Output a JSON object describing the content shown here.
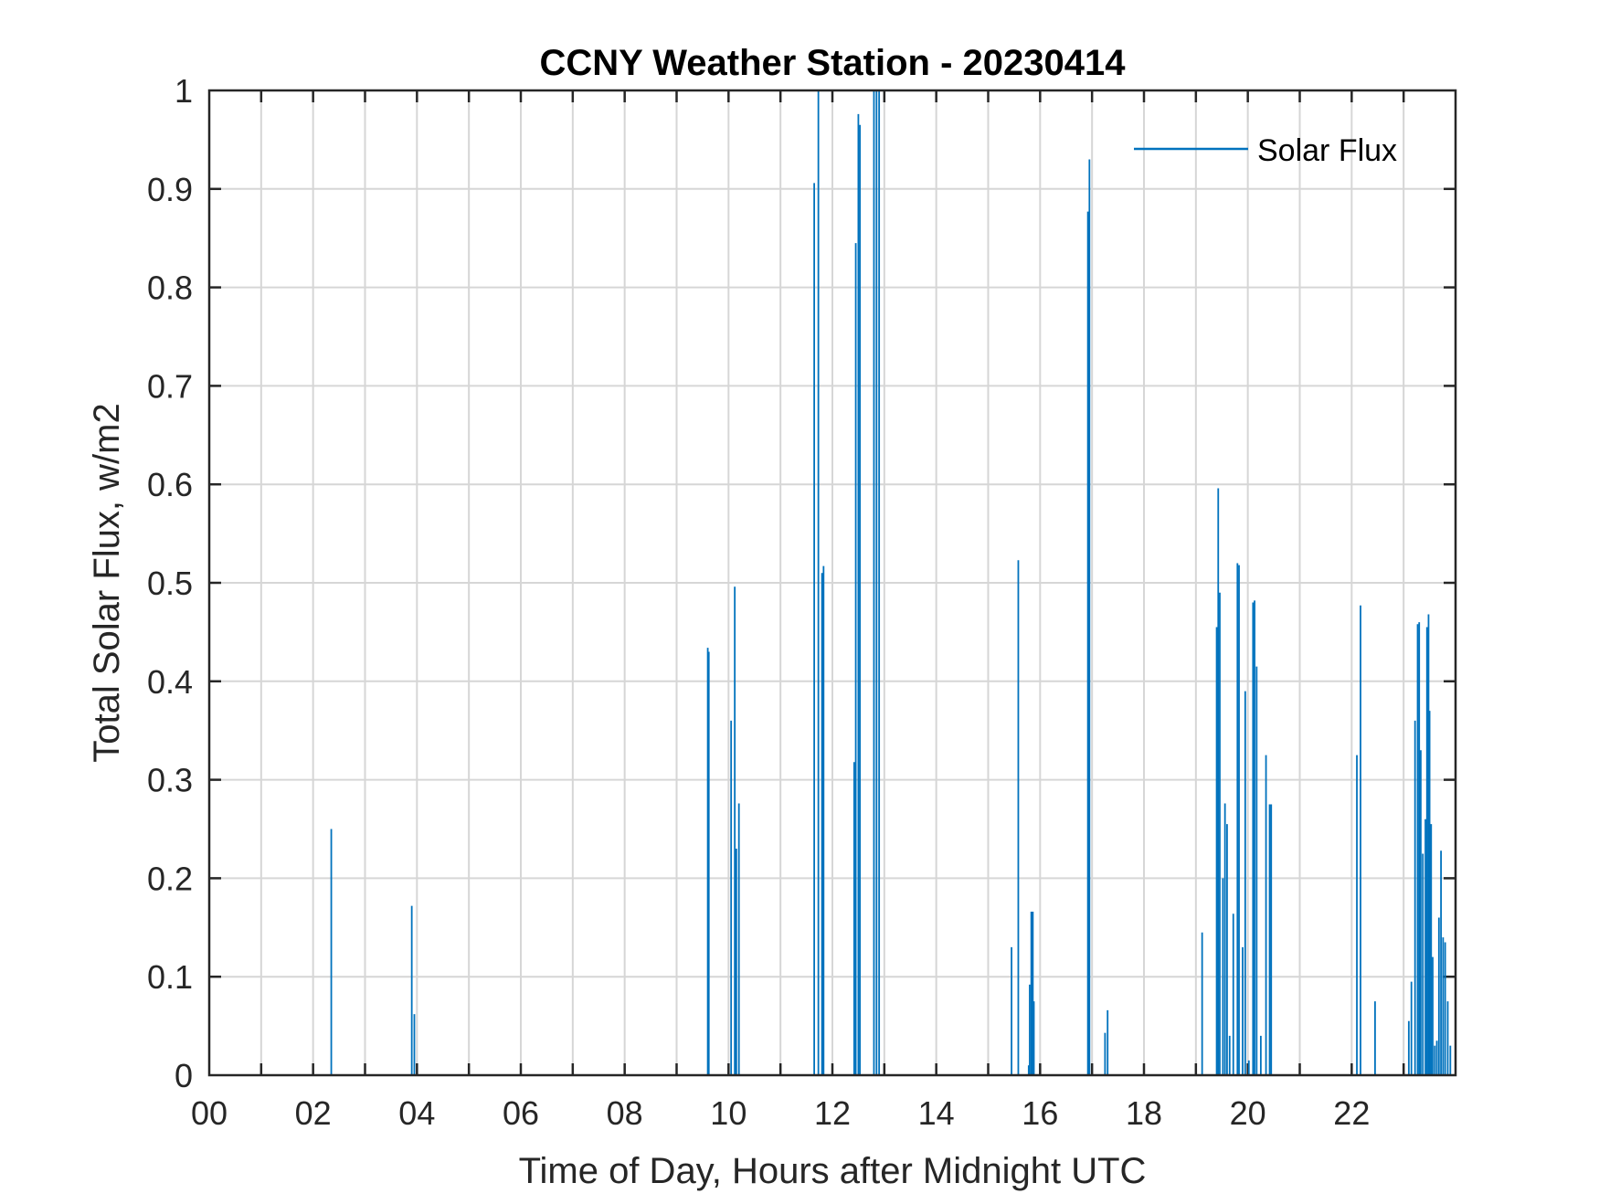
{
  "chart_data": {
    "type": "line",
    "title": "CCNY Weather Station - 20230414",
    "xlabel": "Time of Day, Hours after Midnight UTC",
    "ylabel": "Total Solar Flux, w/m2",
    "xlim": [
      0,
      24
    ],
    "ylim": [
      0,
      1
    ],
    "grid": true,
    "legend_position": "top-right",
    "x_ticks": [
      0,
      2,
      4,
      6,
      8,
      10,
      12,
      14,
      16,
      18,
      20,
      22
    ],
    "x_tick_labels": [
      "00",
      "02",
      "04",
      "06",
      "08",
      "10",
      "12",
      "14",
      "16",
      "18",
      "20",
      "22"
    ],
    "y_ticks": [
      0,
      0.1,
      0.2,
      0.3,
      0.4,
      0.5,
      0.6,
      0.7,
      0.8,
      0.9,
      1
    ],
    "y_tick_labels": [
      "0",
      "0.1",
      "0.2",
      "0.3",
      "0.4",
      "0.5",
      "0.6",
      "0.7",
      "0.8",
      "0.9",
      "1"
    ],
    "series": [
      {
        "name": "Solar Flux",
        "color": "#0072BD",
        "spikes": [
          [
            2.35,
            0.25
          ],
          [
            3.9,
            0.172
          ],
          [
            3.95,
            0.062
          ],
          [
            9.6,
            0.434
          ],
          [
            9.62,
            0.43
          ],
          [
            10.05,
            0.36
          ],
          [
            10.12,
            0.496
          ],
          [
            10.15,
            0.23
          ],
          [
            10.2,
            0.276
          ],
          [
            11.65,
            0.906
          ],
          [
            11.73,
            1.0
          ],
          [
            11.8,
            0.51
          ],
          [
            11.83,
            0.517
          ],
          [
            12.42,
            0.318
          ],
          [
            12.45,
            0.845
          ],
          [
            12.5,
            0.976
          ],
          [
            12.53,
            0.965
          ],
          [
            12.8,
            1.0
          ],
          [
            12.85,
            1.0
          ],
          [
            12.9,
            1.0
          ],
          [
            15.45,
            0.13
          ],
          [
            15.58,
            0.523
          ],
          [
            15.78,
            0.01
          ],
          [
            15.8,
            0.092
          ],
          [
            15.83,
            0.166
          ],
          [
            15.86,
            0.166
          ],
          [
            15.88,
            0.075
          ],
          [
            16.92,
            0.877
          ],
          [
            16.95,
            0.93
          ],
          [
            17.25,
            0.043
          ],
          [
            17.3,
            0.066
          ],
          [
            19.12,
            0.145
          ],
          [
            19.4,
            0.455
          ],
          [
            19.43,
            0.596
          ],
          [
            19.46,
            0.49
          ],
          [
            19.52,
            0.2
          ],
          [
            19.56,
            0.276
          ],
          [
            19.6,
            0.255
          ],
          [
            19.65,
            0.04
          ],
          [
            19.72,
            0.164
          ],
          [
            19.8,
            0.52
          ],
          [
            19.83,
            0.518
          ],
          [
            19.9,
            0.13
          ],
          [
            19.95,
            0.39
          ],
          [
            20.02,
            0.015
          ],
          [
            20.1,
            0.48
          ],
          [
            20.13,
            0.482
          ],
          [
            20.17,
            0.415
          ],
          [
            20.25,
            0.04
          ],
          [
            20.35,
            0.325
          ],
          [
            20.42,
            0.275
          ],
          [
            20.45,
            0.275
          ],
          [
            22.1,
            0.325
          ],
          [
            22.17,
            0.477
          ],
          [
            22.45,
            0.075
          ],
          [
            23.1,
            0.055
          ],
          [
            23.15,
            0.095
          ],
          [
            23.22,
            0.36
          ],
          [
            23.27,
            0.458
          ],
          [
            23.3,
            0.46
          ],
          [
            23.33,
            0.33
          ],
          [
            23.37,
            0.225
          ],
          [
            23.42,
            0.26
          ],
          [
            23.45,
            0.455
          ],
          [
            23.48,
            0.468
          ],
          [
            23.5,
            0.37
          ],
          [
            23.53,
            0.255
          ],
          [
            23.56,
            0.12
          ],
          [
            23.6,
            0.03
          ],
          [
            23.64,
            0.035
          ],
          [
            23.68,
            0.16
          ],
          [
            23.72,
            0.228
          ],
          [
            23.76,
            0.14
          ],
          [
            23.8,
            0.135
          ],
          [
            23.85,
            0.075
          ],
          [
            23.9,
            0.03
          ]
        ]
      }
    ]
  }
}
